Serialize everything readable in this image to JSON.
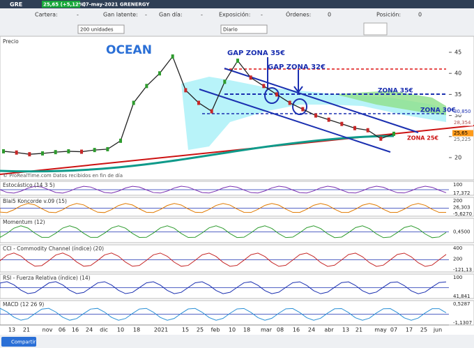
{
  "titlebar": {
    "symbol": "GRE",
    "price": "25,65 (+5,12%)",
    "date": "07-may-2021 GRENERGY"
  },
  "toolbar": {
    "fields": [
      {
        "label": "Cartera:",
        "value": "-"
      },
      {
        "label": "Gan latente:",
        "value": "-"
      },
      {
        "label": "Gan día:",
        "value": "-"
      },
      {
        "label": "Exposición:",
        "value": "-"
      },
      {
        "label": "Órdenes:",
        "value": "0"
      },
      {
        "label": "Posición:",
        "value": "0"
      }
    ],
    "units": "200 unidades",
    "period": "Diario"
  },
  "price_panel": {
    "title": "Precio",
    "ticks": [
      45,
      40,
      35,
      30,
      25,
      20
    ],
    "markers": [
      "30,850",
      "28,354",
      "25,65",
      "25,225"
    ],
    "values": [
      21.5,
      21.2,
      20.8,
      21.0,
      21.3,
      21.5,
      21.4,
      21.8,
      22.0,
      24.0,
      33.0,
      37.0,
      40.0,
      44.0,
      36.0,
      33.0,
      31.0,
      38.0,
      43.0,
      39.0,
      37.0,
      35.0,
      33.0,
      31.5,
      30.0,
      29.0,
      28.0,
      27.0,
      26.5,
      24.5,
      25.65
    ],
    "annotations": {
      "ocean": "OCEAN",
      "gap35": "GAP ZONA 35€",
      "gap32": "GAP ZONA 32€",
      "zona35": "ZONA 35€",
      "zona30": "ZONA 30€",
      "zona25": "ZONA 25€"
    },
    "credit": "© ProRealTime.com  Datos recibidos en fin de día"
  },
  "indicators": [
    {
      "title": "Estocástico (14 3 5)",
      "labels": [
        "100",
        "17,372"
      ]
    },
    {
      "title": "Blai5 Koncorde v.09 (15)",
      "labels": [
        "200",
        "26,303",
        "-5,6270"
      ]
    },
    {
      "title": "Momentum (12)",
      "labels": [
        "0,4500"
      ]
    },
    {
      "title": "CCI - Commodity Channel (índice) (20)",
      "labels": [
        "400",
        "200",
        "-121,13"
      ]
    },
    {
      "title": "RSI - Fuerza Relativa (índice) (14)",
      "labels": [
        "100",
        "41,841"
      ]
    },
    {
      "title": "MACD (12 26 9)",
      "labels": [
        "0,5287",
        "-1,1307"
      ]
    }
  ],
  "xaxis": [
    "13",
    "21",
    "nov",
    "06",
    "16",
    "24",
    "dic",
    "10",
    "18",
    "2021",
    "15",
    "25",
    "feb",
    "10",
    "18",
    "mar",
    "08",
    "16",
    "24",
    "abr",
    "13",
    "21",
    "may",
    "07",
    "17",
    "25",
    "jun"
  ],
  "footer": {
    "share": "Compartir"
  }
}
